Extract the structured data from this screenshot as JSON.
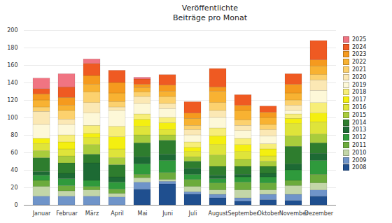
{
  "chart_data": {
    "type": "bar",
    "title": "Veröffentlichte",
    "subtitle": "Beiträge pro Monat",
    "stacked": true,
    "grid": true,
    "legend": "right",
    "categories": [
      "Januar",
      "Februar",
      "März",
      "April",
      "Mai",
      "Juni",
      "Juli",
      "August",
      "September",
      "Oktober",
      "November",
      "Dezember"
    ],
    "ylim": [
      0,
      200
    ],
    "yticks": [
      0,
      20,
      40,
      60,
      80,
      100,
      120,
      140,
      160,
      180,
      200
    ],
    "series": [
      {
        "name": "2008",
        "color": "#1f4f8f",
        "values": [
          0,
          0,
          0,
          0,
          18,
          24,
          12,
          8,
          4,
          6,
          5,
          10
        ]
      },
      {
        "name": "2009",
        "color": "#6f94c9",
        "values": [
          10,
          10,
          10,
          9,
          8,
          3,
          3,
          4,
          4,
          6,
          7,
          7
        ]
      },
      {
        "name": "2010",
        "color": "#c3d6a8",
        "values": [
          11,
          6,
          7,
          4,
          5,
          2,
          6,
          5,
          9,
          5,
          10,
          8
        ]
      },
      {
        "name": "2011",
        "color": "#6cab3c",
        "values": [
          7,
          6,
          4,
          5,
          4,
          8,
          8,
          8,
          9,
          8,
          6,
          10
        ]
      },
      {
        "name": "2012",
        "color": "#2f9a3c",
        "values": [
          6,
          8,
          7,
          8,
          12,
          14,
          6,
          5,
          6,
          7,
          12,
          16
        ]
      },
      {
        "name": "2013",
        "color": "#1d6a34",
        "values": [
          4,
          6,
          20,
          6,
          8,
          7,
          7,
          4,
          3,
          4,
          7,
          8
        ]
      },
      {
        "name": "2014",
        "color": "#2e7d2e",
        "values": [
          16,
          12,
          10,
          14,
          16,
          16,
          8,
          10,
          9,
          8,
          20,
          12
        ]
      },
      {
        "name": "2015",
        "color": "#a9cc3c",
        "values": [
          8,
          8,
          11,
          8,
          9,
          6,
          5,
          13,
          8,
          6,
          12,
          10
        ]
      },
      {
        "name": "2016",
        "color": "#dfe43a",
        "values": [
          8,
          8,
          8,
          10,
          10,
          6,
          6,
          12,
          9,
          6,
          14,
          14
        ]
      },
      {
        "name": "2017",
        "color": "#f4ef10",
        "values": [
          6,
          8,
          5,
          14,
          8,
          8,
          5,
          10,
          8,
          8,
          6,
          10
        ]
      },
      {
        "name": "2018",
        "color": "#f7ee78",
        "values": [
          0,
          8,
          9,
          12,
          6,
          6,
          6,
          9,
          7,
          6,
          5,
          12
        ]
      },
      {
        "name": "2019",
        "color": "#fdf8d8",
        "values": [
          16,
          12,
          14,
          18,
          12,
          10,
          8,
          12,
          9,
          9,
          4,
          14
        ]
      },
      {
        "name": "2020",
        "color": "#fbe8b4",
        "values": [
          15,
          6,
          12,
          4,
          8,
          6,
          6,
          8,
          6,
          7,
          6,
          12
        ]
      },
      {
        "name": "2021",
        "color": "#fcd16e",
        "values": [
          5,
          10,
          12,
          6,
          5,
          8,
          5,
          9,
          6,
          6,
          6,
          6
        ]
      },
      {
        "name": "2022",
        "color": "#f8b232",
        "values": [
          8,
          6,
          9,
          10,
          5,
          6,
          8,
          13,
          11,
          8,
          8,
          10
        ]
      },
      {
        "name": "2023",
        "color": "#f59a1e",
        "values": [
          7,
          9,
          10,
          12,
          4,
          7,
          6,
          5,
          6,
          6,
          10,
          7
        ]
      },
      {
        "name": "2024",
        "color": "#ef5a22",
        "values": [
          6,
          12,
          14,
          14,
          6,
          12,
          13,
          21,
          12,
          7,
          12,
          22
        ]
      },
      {
        "name": "2025",
        "color": "#f07482",
        "values": [
          12,
          15,
          5,
          0,
          2,
          0,
          0,
          0,
          0,
          0,
          0,
          0
        ]
      }
    ]
  }
}
